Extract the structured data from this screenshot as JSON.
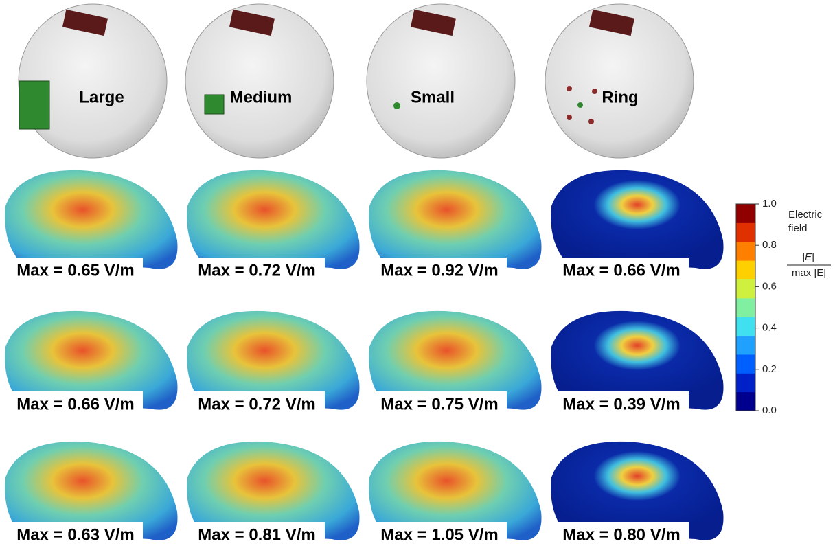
{
  "columns": [
    "Large",
    "Medium",
    "Small",
    "Ring"
  ],
  "rows": [
    [
      "Max = 0.65 V/m",
      "Max = 0.72 V/m",
      "Max = 0.92 V/m",
      "Max = 0.66 V/m"
    ],
    [
      "Max = 0.66 V/m",
      "Max = 0.72 V/m",
      "Max = 0.75 V/m",
      "Max = 0.39 V/m"
    ],
    [
      "Max = 0.63 V/m",
      "Max = 0.81 V/m",
      "Max = 1.05 V/m",
      "Max = 0.80 V/m"
    ]
  ],
  "colorbar": {
    "title": "Electric field",
    "numerator": "|E|",
    "denominator": "max |E|",
    "ticks": [
      {
        "value": 1,
        "label": "1.0"
      },
      {
        "value": 0.8,
        "label": "0.8"
      },
      {
        "value": 0.6,
        "label": "0.6"
      },
      {
        "value": 0.4,
        "label": "0.4"
      },
      {
        "value": 0.2,
        "label": "0.2"
      },
      {
        "value": 0,
        "label": "0.0"
      }
    ]
  }
}
